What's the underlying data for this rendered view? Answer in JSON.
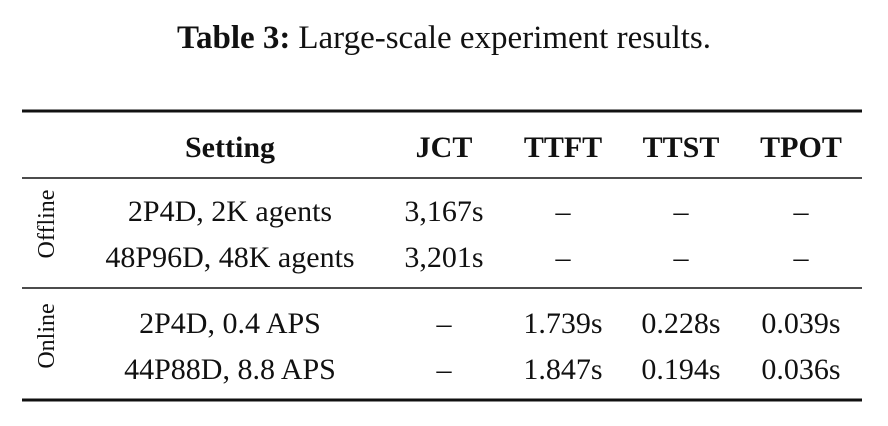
{
  "caption": {
    "label": "Table 3:",
    "text": "Large-scale experiment results."
  },
  "table": {
    "header": [
      "Setting",
      "JCT",
      "TTFT",
      "TTST",
      "TPOT"
    ],
    "groups": [
      {
        "label": "Offline",
        "rows": [
          [
            "2P4D, 2K agents",
            "3,167s",
            "–",
            "–",
            "–"
          ],
          [
            "48P96D, 48K agents",
            "3,201s",
            "–",
            "–",
            "–"
          ]
        ]
      },
      {
        "label": "Online",
        "rows": [
          [
            "2P4D, 0.4 APS",
            "–",
            "1.739s",
            "0.228s",
            "0.039s"
          ],
          [
            "44P88D, 8.8 APS",
            "–",
            "1.847s",
            "0.194s",
            "0.036s"
          ]
        ]
      }
    ]
  }
}
